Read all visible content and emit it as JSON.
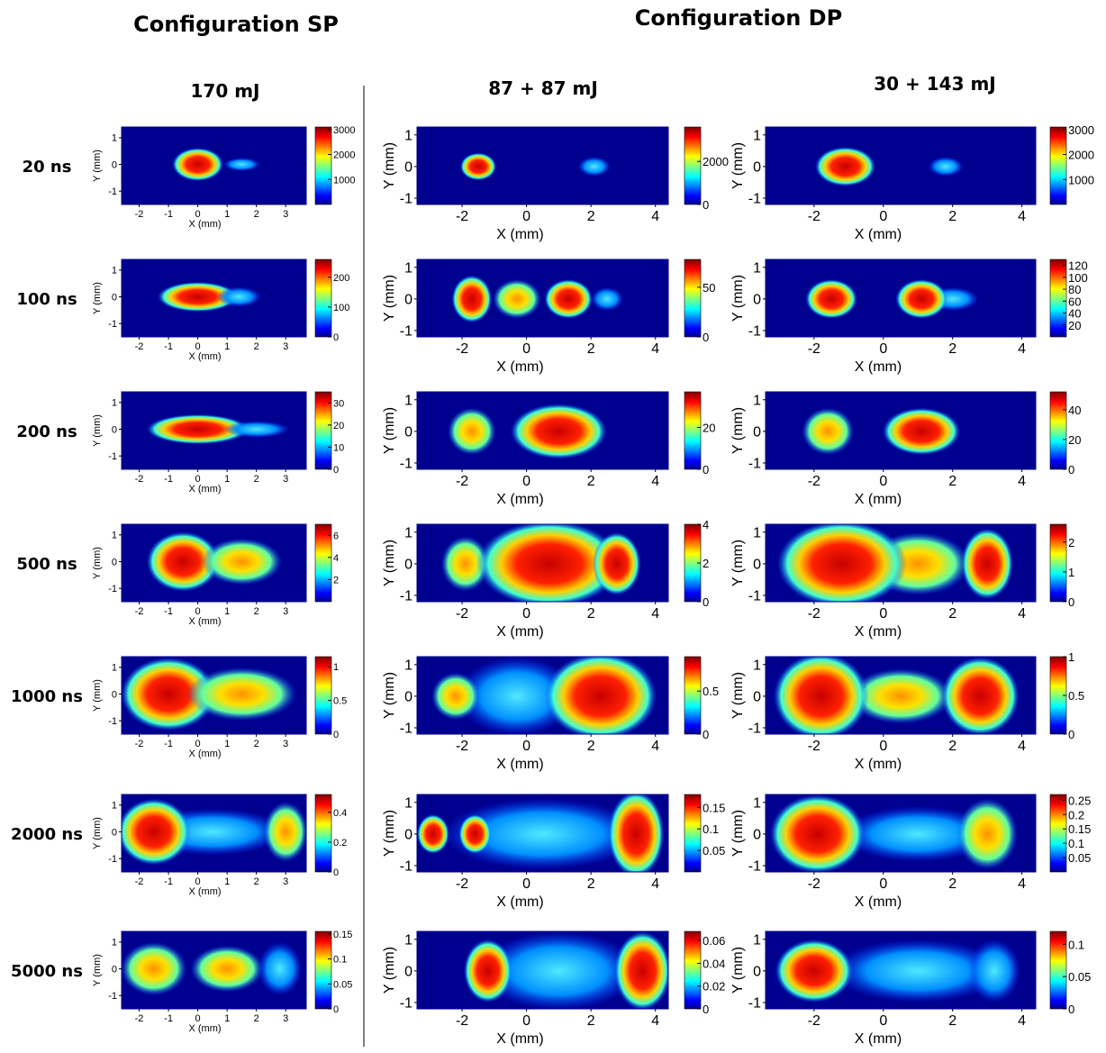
{
  "headers": [
    "Configuration SP",
    "Configuration DP"
  ],
  "row_labels": [
    "20 ns",
    "100 ns",
    "200 ns",
    "500 ns",
    "1000 ns",
    "2000 ns",
    "5000 ns"
  ],
  "columns": [
    {
      "title": "170 mJ",
      "xlabel": "X (mm)",
      "ylabel": "Y (mm)",
      "xlim": [
        -2.6,
        3.7
      ],
      "ylim": [
        -1.5,
        1.4
      ],
      "xticks": [
        -2,
        -1,
        0,
        1,
        2,
        3
      ],
      "yticks": [
        -1,
        0,
        1
      ],
      "panels": [
        {
          "clim": [
            0,
            3100
          ],
          "cticks": [
            1000,
            2000,
            3000
          ]
        },
        {
          "clim": [
            0,
            260
          ],
          "cticks": [
            0,
            100,
            200
          ]
        },
        {
          "clim": [
            0,
            35
          ],
          "cticks": [
            0,
            10,
            20,
            30
          ]
        },
        {
          "clim": [
            0,
            7
          ],
          "cticks": [
            2,
            4,
            6
          ]
        },
        {
          "clim": [
            0,
            1.15
          ],
          "cticks": [
            0,
            0.5,
            1
          ]
        },
        {
          "clim": [
            0,
            0.52
          ],
          "cticks": [
            0,
            0.2,
            0.4
          ]
        },
        {
          "clim": [
            0,
            0.155
          ],
          "cticks": [
            0,
            0.05,
            0.1,
            0.15
          ]
        }
      ]
    },
    {
      "title": "87 + 87 mJ",
      "xlabel": "X (mm)",
      "ylabel": "Y (mm)",
      "xlim": [
        -3.4,
        4.4
      ],
      "ylim": [
        -1.2,
        1.25
      ],
      "xticks": [
        -2,
        0,
        2,
        4
      ],
      "yticks": [
        -1,
        0,
        1
      ],
      "panels": [
        {
          "clim": [
            0,
            3600
          ],
          "cticks": [
            0,
            2000
          ]
        },
        {
          "clim": [
            0,
            78
          ],
          "cticks": [
            0,
            50
          ]
        },
        {
          "clim": [
            0,
            37
          ],
          "cticks": [
            0,
            20
          ]
        },
        {
          "clim": [
            0,
            4
          ],
          "cticks": [
            0,
            2,
            4
          ]
        },
        {
          "clim": [
            0,
            0.9
          ],
          "cticks": [
            0,
            0.5
          ]
        },
        {
          "clim": [
            0,
            0.18
          ],
          "cticks": [
            0.05,
            0.1,
            0.15
          ]
        },
        {
          "clim": [
            0,
            0.068
          ],
          "cticks": [
            0,
            0.02,
            0.04,
            0.06
          ]
        }
      ]
    },
    {
      "title": "30 + 143 mJ",
      "xlabel": "X (mm)",
      "ylabel": "Y (mm)",
      "xlim": [
        -3.4,
        4.4
      ],
      "ylim": [
        -1.2,
        1.25
      ],
      "xticks": [
        -2,
        0,
        2,
        4
      ],
      "yticks": [
        -1,
        0,
        1
      ],
      "panels": [
        {
          "clim": [
            0,
            3100
          ],
          "cticks": [
            1000,
            2000,
            3000
          ]
        },
        {
          "clim": [
            0,
            130
          ],
          "cticks": [
            20,
            40,
            60,
            80,
            100,
            120
          ]
        },
        {
          "clim": [
            0,
            52
          ],
          "cticks": [
            0,
            20,
            40
          ]
        },
        {
          "clim": [
            0,
            2.6
          ],
          "cticks": [
            0,
            1,
            2
          ]
        },
        {
          "clim": [
            0,
            1
          ],
          "cticks": [
            0,
            0.5,
            1
          ]
        },
        {
          "clim": [
            0,
            0.27
          ],
          "cticks": [
            0.05,
            0.1,
            0.15,
            0.2,
            0.25
          ]
        },
        {
          "clim": [
            0,
            0.12
          ],
          "cticks": [
            0,
            0.05,
            0.1
          ]
        }
      ]
    }
  ]
}
